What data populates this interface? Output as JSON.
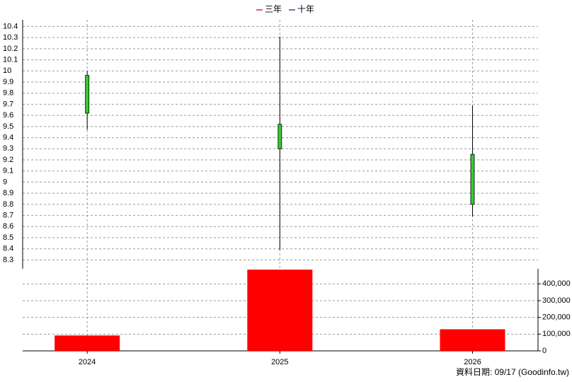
{
  "chart_data": {
    "type": "candlestick",
    "legend": [
      {
        "name": "三年",
        "color": "#e0245e"
      },
      {
        "name": "十年",
        "color": "#7030a0"
      }
    ],
    "x": [
      2024,
      2025,
      2026
    ],
    "open": [
      9.96,
      9.52,
      9.25
    ],
    "high": [
      10.0,
      10.31,
      9.69
    ],
    "low": [
      9.47,
      8.39,
      8.69
    ],
    "close": [
      9.62,
      9.3,
      8.8
    ],
    "up_color": "#ff0000",
    "down_color": "#33cc33",
    "xlim": [
      2023.665,
      2026.34
    ],
    "xticks": [
      2024,
      2025,
      2026
    ],
    "ylim": [
      8.22,
      10.46
    ],
    "yticks": [
      8.3,
      8.4,
      8.5,
      8.6,
      8.7,
      8.8,
      8.9,
      9,
      9.1,
      9.2,
      9.3,
      9.4,
      9.5,
      9.6,
      9.7,
      9.8,
      9.9,
      10,
      10.1,
      10.2,
      10.3,
      10.4
    ],
    "grid": true,
    "volume": {
      "values": [
        92000,
        485000,
        129000
      ],
      "color": "#ff0000",
      "ylim": [
        0,
        490000
      ],
      "yticks": [
        0,
        {
          "value": 100000,
          "label": "100,000"
        },
        {
          "value": 200000,
          "label": "200,000"
        },
        {
          "value": 300000,
          "label": "300,000"
        },
        {
          "value": 400000,
          "label": "400,000"
        }
      ]
    },
    "footer": "資料日期: 09/17  (Goodinfo.tw)"
  }
}
